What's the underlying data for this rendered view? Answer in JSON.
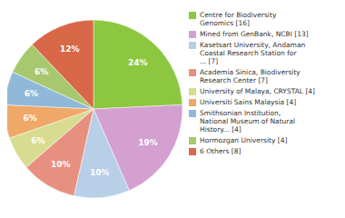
{
  "chart_data": {
    "type": "pie",
    "categories": [
      "Centre for Biodiversity\nGenomics [16]",
      "Mined from GenBank, NCBI [13]",
      "Kasetsart University, Andaman\nCoastal Research Station for\n... [7]",
      "Academia Sinica, Biodiversity\nResearch Center [7]",
      "University of Malaya, CRYSTAL [4]",
      "Universiti Sains Malaysia [4]",
      "Smithsonian Institution,\nNational Museum of Natural\nHistory... [4]",
      "Hormozgan University [4]",
      "6 Others [8]"
    ],
    "values": [
      24,
      19,
      10,
      10,
      6,
      6,
      6,
      6,
      12
    ],
    "value_labels": [
      "24%",
      "19%",
      "10%",
      "10%",
      "6%",
      "6%",
      "6%",
      "6%",
      "12%"
    ],
    "colors": [
      "#8dc63f",
      "#d4a0d0",
      "#b8cfe8",
      "#e89080",
      "#d8dc90",
      "#f0a868",
      "#90b8d8",
      "#a8c870",
      "#d86848"
    ],
    "data_labels": true,
    "legend": "right"
  }
}
